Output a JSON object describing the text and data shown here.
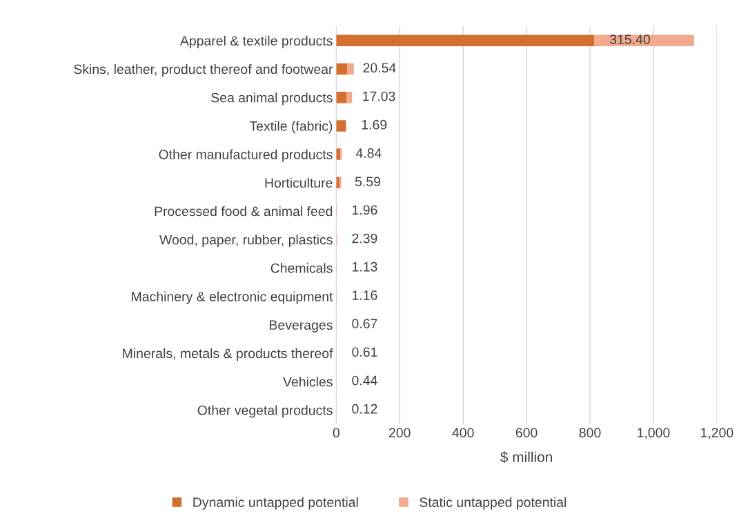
{
  "chart_data": {
    "type": "bar",
    "orientation": "horizontal",
    "stacked": true,
    "categories": [
      "Apparel & textile products",
      "Skins, leather, product thereof and footwear",
      "Sea animal products",
      "Textile (fabric)",
      "Other manufactured products",
      "Horticulture",
      "Processed food & animal feed",
      "Wood, paper, rubber, plastics",
      "Chemicals",
      "Machinery & electronic equipment",
      "Beverages",
      "Minerals, metals & products thereof",
      "Vehicles",
      "Other vegetal products"
    ],
    "series": [
      {
        "name": "Dynamic untapped potential",
        "color": "#d4702f",
        "values": [
          813,
          35,
          33,
          30,
          13,
          10,
          null,
          null,
          null,
          null,
          0,
          0,
          0,
          0
        ]
      },
      {
        "name": "Static untapped potential",
        "color": "#f2a98e",
        "values": [
          315.4,
          20.54,
          17.03,
          1.69,
          4.84,
          5.59,
          1.96,
          2.39,
          1.13,
          1.16,
          0.67,
          0.61,
          0.44,
          0.12
        ],
        "value_labels": [
          "315.40",
          "20.54",
          "17.03",
          "1.69",
          "4.84",
          "5.59",
          "1.96",
          "2.39",
          "1.13",
          "1.16",
          "0.67",
          "0.61",
          "0.44",
          "0.12"
        ]
      }
    ],
    "xlim": [
      0,
      1200
    ],
    "xticks": [
      0,
      {
        "value": 200,
        "label": "200"
      },
      {
        "value": 400,
        "label": "400"
      },
      {
        "value": 600,
        "label": "600"
      },
      {
        "value": 800,
        "label": "800"
      },
      {
        "value": 1000,
        "label": "1,000"
      },
      {
        "value": 1200,
        "label": "1,200"
      }
    ],
    "xlabel": "$ million",
    "grid": "x",
    "legend": "bottom"
  }
}
